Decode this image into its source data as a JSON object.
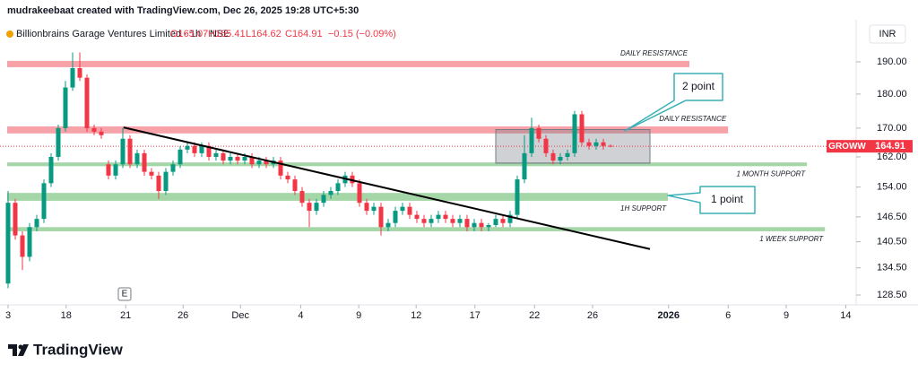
{
  "header": {
    "creator": "mudrakeebaat created with TradingView.com, Dec 26, 2025 19:28 UTC+5:30",
    "symbol": "Billionbrains Garage Ventures Limited · 1h · NSE",
    "ohlc": [
      "O165.07",
      "H165.41",
      "L164.62",
      "C164.91",
      "−0.15 (−0.09%)"
    ],
    "currency": "INR"
  },
  "footer": {
    "logo": "TradingView"
  },
  "chart_data": {
    "type": "candlestick",
    "x": [
      0,
      1,
      2,
      3,
      4,
      5,
      6,
      7,
      8,
      9,
      10,
      11,
      12,
      13,
      14,
      15,
      16,
      17,
      18,
      19,
      20,
      21,
      22,
      23,
      24,
      25,
      26,
      27,
      28,
      29,
      30,
      31,
      32,
      33,
      34,
      35,
      36,
      37,
      38,
      39,
      40,
      41,
      42,
      43,
      44,
      45,
      46,
      47,
      48,
      49,
      50,
      51,
      52,
      53,
      54,
      55,
      56,
      57,
      58,
      59,
      60,
      61,
      62,
      63,
      64,
      65,
      66,
      67,
      68,
      69,
      70,
      71,
      72,
      73,
      74,
      75,
      76,
      77,
      78,
      79,
      80,
      81,
      82,
      83,
      84
    ],
    "open": [
      131,
      150,
      142,
      137,
      144,
      146,
      155,
      162,
      170,
      182,
      188,
      185,
      170,
      169,
      160,
      157,
      160,
      167,
      160,
      163,
      158,
      157,
      153,
      158,
      160,
      164,
      165,
      163,
      165,
      162,
      163,
      161,
      162,
      161,
      162,
      160,
      161,
      160,
      161,
      157,
      156,
      153,
      150,
      148,
      150,
      152,
      153,
      155,
      157,
      155,
      150,
      148,
      149,
      144,
      145,
      148,
      149,
      147,
      146,
      145,
      146,
      147,
      146,
      145,
      146,
      144,
      145,
      144,
      144.5,
      146,
      145,
      147,
      156,
      163,
      170,
      167,
      163,
      161,
      162,
      163,
      174,
      166,
      165,
      166,
      165.07
    ],
    "high": [
      153,
      151,
      143,
      145,
      147,
      156,
      163,
      171,
      184,
      193,
      193,
      186,
      171,
      170,
      161,
      161,
      170,
      168,
      164,
      164,
      159,
      158,
      159,
      161,
      165,
      166,
      166,
      166,
      166,
      164,
      164,
      163,
      163,
      163,
      163,
      162,
      162,
      162,
      162,
      158,
      157,
      154,
      151,
      151,
      153,
      154,
      156,
      158,
      158,
      156,
      151,
      150,
      150,
      146,
      149,
      150,
      150,
      148,
      147,
      147,
      148,
      148,
      147,
      147,
      147,
      146,
      146,
      145,
      147,
      147,
      148,
      157,
      168,
      173,
      171,
      168,
      164,
      163,
      164,
      175,
      175,
      167,
      167,
      167,
      165.41
    ],
    "low": [
      130,
      141,
      134,
      136,
      143,
      145,
      154,
      161,
      169,
      181,
      184,
      169,
      168,
      167,
      156,
      156,
      159,
      159,
      159,
      157,
      156,
      151,
      152,
      157,
      159,
      163,
      162,
      162,
      161,
      161,
      160,
      160,
      160,
      160,
      159,
      159,
      159,
      159,
      156,
      155,
      152,
      149,
      144,
      147,
      149,
      151,
      152,
      154,
      154,
      149,
      147,
      147,
      142,
      143,
      144,
      147,
      146,
      145,
      144,
      144,
      145,
      145,
      144,
      144,
      143,
      143,
      143,
      143,
      144,
      144,
      144,
      146,
      155,
      162,
      166,
      162,
      160,
      160,
      161,
      162,
      165,
      164,
      164,
      164,
      164.62
    ],
    "close": [
      150,
      142,
      137,
      144,
      146,
      155,
      162,
      170,
      182,
      188,
      185,
      170,
      169,
      168,
      157,
      160,
      167,
      160,
      163,
      158,
      157,
      153,
      158,
      160,
      164,
      165,
      163,
      165,
      162,
      163,
      161,
      162,
      161,
      162,
      160,
      161,
      160,
      161,
      157,
      156,
      153,
      150,
      148,
      150,
      152,
      153,
      155,
      157,
      155,
      150,
      148,
      149,
      144,
      145,
      148,
      149,
      147,
      146,
      145,
      146,
      147,
      146,
      145,
      146,
      144,
      145,
      144,
      144.5,
      146,
      145,
      147,
      156,
      163,
      170,
      167,
      163,
      161,
      162,
      163,
      174,
      166,
      165,
      166,
      165,
      164.91
    ],
    "up_color": "#089981",
    "down_color": "#f23645",
    "xlim": [
      -1.125,
      118.25
    ],
    "xticks": [
      {
        "value": 0,
        "label": "3"
      },
      {
        "value": 8.1,
        "label": "18"
      },
      {
        "value": 16.4,
        "label": "21"
      },
      {
        "value": 24.4,
        "label": "26"
      },
      {
        "value": 32.4,
        "label": "Dec"
      },
      {
        "value": 40.8,
        "label": "4"
      },
      {
        "value": 48.9,
        "label": "9"
      },
      {
        "value": 56.9,
        "label": "12"
      },
      {
        "value": 65.1,
        "label": "17"
      },
      {
        "value": 73.4,
        "label": "22"
      },
      {
        "value": 81.5,
        "label": "26"
      },
      {
        "value": 92.1,
        "label": "2026"
      },
      {
        "value": 100.4,
        "label": "6"
      },
      {
        "value": 108.5,
        "label": "9"
      },
      {
        "value": 116.8,
        "label": "14"
      }
    ],
    "ylim": [
      126.4,
      203.9
    ],
    "log_scale": true,
    "yticks": [
      {
        "value": 190,
        "label": "190.00"
      },
      {
        "value": 180,
        "label": "180.00"
      },
      {
        "value": 170,
        "label": "170.00"
      },
      {
        "value": 162,
        "label": "162.00"
      },
      {
        "value": 154,
        "label": "154.00"
      },
      {
        "value": 146.5,
        "label": "146.50"
      },
      {
        "value": 140.5,
        "label": "140.50"
      },
      {
        "value": 134.5,
        "label": "134.50"
      },
      {
        "value": 128.5,
        "label": "128.50"
      }
    ],
    "last_price": 164.91,
    "last_price_source": "GROWW",
    "zones": [
      {
        "label": "DAILY RESISTANCE",
        "low": 188.3,
        "high": 190.3,
        "x": [
          -0.125,
          95
        ],
        "color": "#f7a1a8"
      },
      {
        "label": "DAILY RESISTANCE",
        "low": 168.5,
        "high": 170.5,
        "x": [
          -0.125,
          100.4
        ],
        "color": "#f7a1a8"
      },
      {
        "label": "1 MONTH SUPPORT",
        "low": 159.5,
        "high": 160.5,
        "x": [
          -0.125,
          111.4
        ],
        "color": "#a5d6a7"
      },
      {
        "label": "1H SUPPORT",
        "low": 150.5,
        "high": 152.5,
        "x": [
          -0.125,
          92
        ],
        "color": "#a5d6a7"
      },
      {
        "label": "1 WEEK SUPPORT",
        "low": 143,
        "high": 144,
        "x": [
          -0.125,
          113.9
        ],
        "color": "#a5d6a7"
      }
    ],
    "box": {
      "x": [
        68,
        89.5
      ],
      "low": 160.3,
      "high": 169.6
    },
    "trendline": {
      "x": [
        16.1,
        89.5
      ],
      "y": [
        170.2,
        138.8
      ]
    },
    "callouts": [
      "2 point",
      "1 point"
    ],
    "event_marker": "E"
  }
}
